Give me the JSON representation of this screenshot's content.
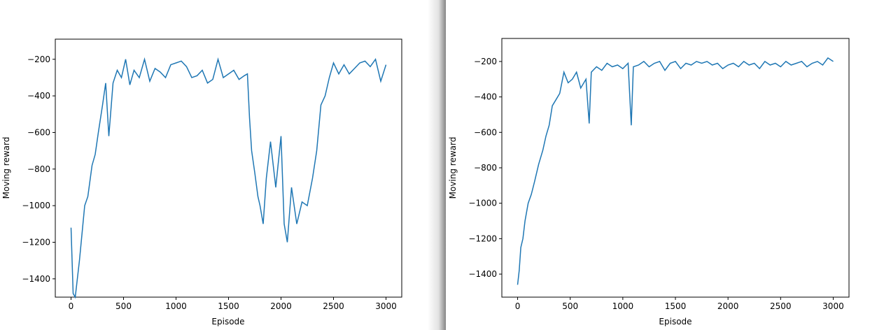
{
  "colors": {
    "line": "#1f77b4",
    "background": "#ffffff",
    "axes": "#000000"
  },
  "chart_data": [
    {
      "type": "line",
      "title": "",
      "xlabel": "Episode",
      "ylabel": "Moving reward",
      "xlim": [
        -150,
        3150
      ],
      "ylim": [
        -1500,
        -90
      ],
      "xticks": [
        0,
        500,
        1000,
        1500,
        2000,
        2500,
        3000
      ],
      "xtick_labels": [
        "0",
        "500",
        "1000",
        "1500",
        "2000",
        "2500",
        "3000"
      ],
      "yticks": [
        -1400,
        -1200,
        -1000,
        -800,
        -600,
        -400,
        -200
      ],
      "ytick_labels": [
        "−1400",
        "−1200",
        "−1000",
        "−800",
        "−600",
        "−400",
        "−200"
      ],
      "grid": false,
      "series": [
        {
          "x": [
            0,
            20,
            40,
            60,
            80,
            100,
            130,
            160,
            200,
            230,
            260,
            300,
            330,
            360,
            400,
            440,
            480,
            520,
            560,
            600,
            650,
            700,
            750,
            800,
            850,
            900,
            950,
            1000,
            1050,
            1100,
            1150,
            1200,
            1250,
            1300,
            1350,
            1400,
            1450,
            1500,
            1550,
            1600,
            1650,
            1680,
            1700,
            1720,
            1750,
            1780,
            1800,
            1830,
            1860,
            1900,
            1950,
            2000,
            2030,
            2060,
            2100,
            2150,
            2200,
            2250,
            2300,
            2340,
            2380,
            2420,
            2460,
            2500,
            2550,
            2600,
            2650,
            2700,
            2750,
            2800,
            2850,
            2900,
            2950,
            3000
          ],
          "y": [
            -1120,
            -1480,
            -1500,
            -1400,
            -1300,
            -1180,
            -1000,
            -950,
            -780,
            -720,
            -600,
            -450,
            -330,
            -620,
            -330,
            -260,
            -300,
            -200,
            -340,
            -260,
            -300,
            -200,
            -320,
            -250,
            -270,
            -300,
            -230,
            -220,
            -210,
            -240,
            -300,
            -290,
            -260,
            -330,
            -310,
            -200,
            -300,
            -280,
            -260,
            -310,
            -290,
            -280,
            -520,
            -700,
            -820,
            -950,
            -1000,
            -1100,
            -850,
            -650,
            -900,
            -620,
            -1100,
            -1200,
            -900,
            -1100,
            -980,
            -1000,
            -850,
            -700,
            -450,
            -400,
            -300,
            -220,
            -280,
            -230,
            -280,
            -250,
            -220,
            -210,
            -240,
            -200,
            -320,
            -230
          ]
        }
      ]
    },
    {
      "type": "line",
      "title": "",
      "xlabel": "Episode",
      "ylabel": "Moving reward",
      "xlim": [
        -150,
        3150
      ],
      "ylim": [
        -1530,
        -70
      ],
      "xticks": [
        0,
        500,
        1000,
        1500,
        2000,
        2500,
        3000
      ],
      "xtick_labels": [
        "0",
        "500",
        "1000",
        "1500",
        "2000",
        "2500",
        "3000"
      ],
      "yticks": [
        -1400,
        -1200,
        -1000,
        -800,
        -600,
        -400,
        -200
      ],
      "ytick_labels": [
        "−1400",
        "−1200",
        "−1000",
        "−800",
        "−600",
        "−400",
        "−200"
      ],
      "grid": false,
      "series": [
        {
          "x": [
            0,
            15,
            30,
            50,
            70,
            100,
            130,
            160,
            200,
            240,
            270,
            300,
            330,
            360,
            400,
            440,
            480,
            520,
            560,
            600,
            650,
            680,
            700,
            750,
            800,
            850,
            900,
            950,
            1000,
            1050,
            1080,
            1100,
            1150,
            1200,
            1250,
            1300,
            1350,
            1400,
            1450,
            1500,
            1550,
            1600,
            1650,
            1700,
            1750,
            1800,
            1850,
            1900,
            1950,
            2000,
            2050,
            2100,
            2150,
            2200,
            2250,
            2300,
            2350,
            2400,
            2450,
            2500,
            2550,
            2600,
            2650,
            2700,
            2750,
            2800,
            2850,
            2900,
            2950,
            3000
          ],
          "y": [
            -1460,
            -1380,
            -1250,
            -1200,
            -1100,
            -1000,
            -950,
            -880,
            -780,
            -700,
            -620,
            -560,
            -450,
            -420,
            -380,
            -260,
            -320,
            -300,
            -260,
            -350,
            -300,
            -550,
            -260,
            -230,
            -250,
            -210,
            -230,
            -220,
            -240,
            -210,
            -560,
            -230,
            -220,
            -200,
            -230,
            -210,
            -200,
            -250,
            -210,
            -200,
            -240,
            -210,
            -220,
            -200,
            -210,
            -200,
            -220,
            -210,
            -240,
            -220,
            -210,
            -230,
            -200,
            -220,
            -210,
            -240,
            -200,
            -220,
            -210,
            -230,
            -200,
            -220,
            -210,
            -200,
            -230,
            -210,
            -200,
            -220,
            -180,
            -200
          ]
        }
      ]
    }
  ]
}
